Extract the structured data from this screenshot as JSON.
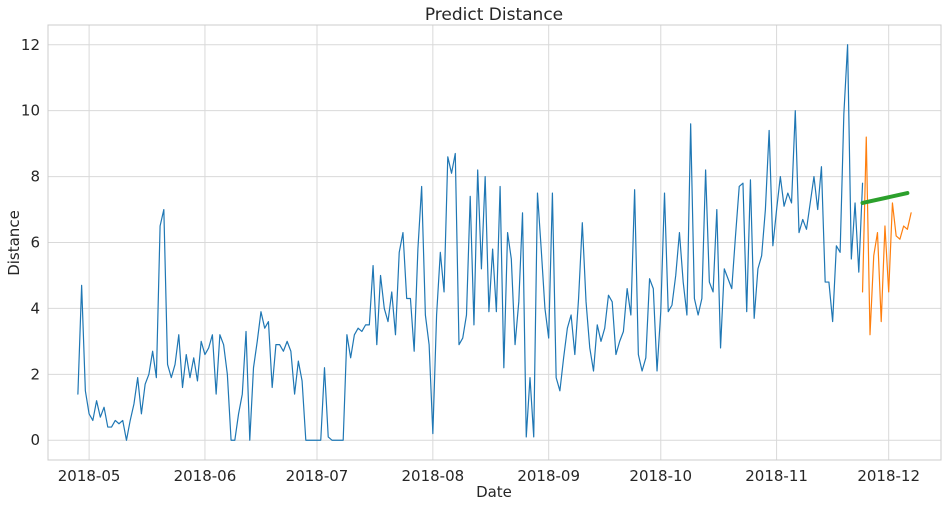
{
  "chart_data": {
    "type": "line",
    "title": "Predict Distance",
    "xlabel": "Date",
    "ylabel": "Distance",
    "grid": true,
    "xlim": [
      "2018-04-20",
      "2018-12-15"
    ],
    "ylim": [
      -0.6,
      12.6
    ],
    "yticks": [
      0,
      2,
      4,
      6,
      8,
      10,
      12
    ],
    "xticks": [
      "2018-05-01",
      "2018-06-01",
      "2018-07-01",
      "2018-08-01",
      "2018-09-01",
      "2018-10-01",
      "2018-11-01",
      "2018-12-01"
    ],
    "xtick_labels": [
      "2018-05",
      "2018-06",
      "2018-07",
      "2018-08",
      "2018-09",
      "2018-10",
      "2018-11",
      "2018-12"
    ],
    "series": [
      {
        "color": "#1f77b4",
        "start_date": "2018-04-28",
        "values": [
          1.4,
          4.7,
          1.5,
          0.8,
          0.6,
          1.2,
          0.7,
          1.0,
          0.4,
          0.4,
          0.6,
          0.5,
          0.6,
          0.0,
          0.6,
          1.1,
          1.9,
          0.8,
          1.7,
          2.0,
          2.7,
          1.9,
          6.5,
          7.0,
          2.3,
          1.9,
          2.3,
          3.2,
          1.6,
          2.6,
          1.9,
          2.5,
          1.8,
          3.0,
          2.6,
          2.8,
          3.2,
          1.4,
          3.2,
          2.9,
          2.0,
          0.0,
          0.0,
          0.8,
          1.4,
          3.3,
          0.0,
          2.2,
          3.0,
          3.9,
          3.4,
          3.6,
          1.6,
          2.9,
          2.9,
          2.7,
          3.0,
          2.7,
          1.4,
          2.4,
          1.8,
          0.0,
          0.0,
          0.0,
          0.0,
          0.0,
          2.2,
          0.1,
          0.0,
          0.0,
          0.0,
          0.0,
          3.2,
          2.5,
          3.2,
          3.4,
          3.3,
          3.5,
          3.5,
          5.3,
          2.9,
          5.0,
          4.0,
          3.6,
          4.5,
          3.2,
          5.7,
          6.3,
          4.3,
          4.3,
          2.7,
          5.8,
          7.7,
          3.8,
          2.9,
          0.2,
          3.8,
          5.7,
          4.5,
          8.6,
          8.1,
          8.7,
          2.9,
          3.1,
          3.8,
          7.4,
          3.5,
          8.2,
          5.2,
          8.0,
          3.9,
          5.8,
          3.9,
          7.7,
          2.2,
          6.3,
          5.5,
          2.9,
          4.2,
          6.9,
          0.1,
          1.9,
          0.1,
          7.5,
          5.8,
          4.0,
          3.1,
          7.5,
          1.9,
          1.5,
          2.5,
          3.4,
          3.8,
          2.6,
          4.3,
          6.6,
          4.2,
          2.8,
          2.1,
          3.5,
          3.0,
          3.4,
          4.4,
          4.2,
          2.6,
          3.0,
          3.3,
          4.6,
          3.8,
          7.6,
          2.6,
          2.1,
          2.5,
          4.9,
          4.6,
          2.1,
          3.9,
          7.5,
          3.9,
          4.1,
          5.0,
          6.3,
          4.8,
          3.8,
          9.6,
          4.3,
          3.8,
          4.3,
          8.2,
          4.8,
          4.5,
          7.0,
          2.8,
          5.2,
          4.9,
          4.6,
          6.2,
          7.7,
          7.8,
          3.9,
          7.9,
          3.7,
          5.2,
          5.6,
          7.0,
          9.4,
          5.9,
          7.0,
          8.0,
          7.1,
          7.5,
          7.2,
          10.0,
          6.3,
          6.7,
          6.4,
          7.2,
          8.0,
          7.0,
          8.3,
          4.8,
          4.8,
          3.6,
          5.9,
          5.7,
          9.9,
          12.0,
          5.5,
          7.2,
          5.1,
          7.8
        ]
      },
      {
        "color": "#ff7f0e",
        "start_date": "2018-11-24",
        "values": [
          4.5,
          9.2,
          3.2,
          5.6,
          6.3,
          3.6,
          6.5,
          4.5,
          7.2,
          6.2,
          6.1,
          6.5,
          6.4,
          6.9
        ]
      },
      {
        "color": "#2ca02c",
        "start_date": "2018-11-24",
        "values": [
          7.2,
          7.5
        ]
      }
    ]
  }
}
